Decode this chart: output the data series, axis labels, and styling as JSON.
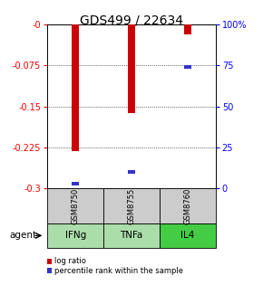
{
  "title": "GDS499 / 22634",
  "categories": [
    "IFNg",
    "TNFa",
    "IL4"
  ],
  "sample_ids": [
    "GSM8750",
    "GSM8755",
    "GSM8760"
  ],
  "log_ratios": [
    -0.232,
    -0.163,
    -0.018
  ],
  "percentile_ranks": [
    3,
    10,
    74
  ],
  "ylim_left": [
    -0.3,
    0.0
  ],
  "yticks_left": [
    -0.3,
    -0.225,
    -0.15,
    -0.075,
    0.0
  ],
  "ytick_labels_left": [
    "-0.3",
    "-0.225",
    "-0.15",
    "-0.075",
    "-0"
  ],
  "yticks_right": [
    0,
    25,
    50,
    75,
    100
  ],
  "ytick_labels_right": [
    "0",
    "25",
    "50",
    "75",
    "100%"
  ],
  "bar_color": "#cc0000",
  "percentile_color": "#3333cc",
  "sample_bg_color": "#cccccc",
  "agent_bg_colors": [
    "#aaddaa",
    "#aaddaa",
    "#44cc44"
  ],
  "bar_width": 0.12,
  "legend_labels": [
    "log ratio",
    "percentile rank within the sample"
  ],
  "background_color": "#ffffff",
  "title_fontsize": 10,
  "tick_fontsize": 7,
  "axis_fontsize": 7
}
